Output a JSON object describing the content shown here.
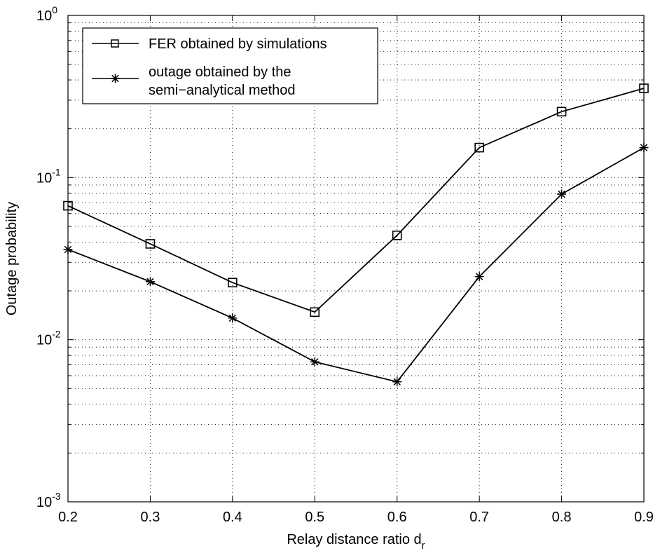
{
  "chart_data": {
    "type": "line",
    "x": [
      0.2,
      0.3,
      0.4,
      0.5,
      0.6,
      0.7,
      0.8,
      0.9
    ],
    "xlim": [
      0.2,
      0.9
    ],
    "ylim": [
      0.001,
      1
    ],
    "yscale": "log",
    "xticks": [
      "0.2",
      "0.3",
      "0.4",
      "0.5",
      "0.6",
      "0.7",
      "0.8",
      "0.9"
    ],
    "yticks": [
      {
        "base": "10",
        "exp": "0",
        "value": 1
      },
      {
        "base": "10",
        "exp": "-1",
        "value": 0.1
      },
      {
        "base": "10",
        "exp": "-2",
        "value": 0.01
      },
      {
        "base": "10",
        "exp": "-3",
        "value": 0.001
      }
    ],
    "xlabel": "Relay distance ratio d",
    "xlabel_sub": "r",
    "ylabel": "Outage probability",
    "grid": true,
    "legend_position": "top-left",
    "series": [
      {
        "name": "FER obtained by simulations",
        "marker": "square",
        "color": "#000000",
        "values": [
          0.067,
          0.039,
          0.0225,
          0.0148,
          0.044,
          0.153,
          0.255,
          0.355
        ]
      },
      {
        "name_lines": [
          "outage obtained by the",
          "semi−analytical method"
        ],
        "marker": "asterisk",
        "color": "#000000",
        "values": [
          0.036,
          0.0228,
          0.0136,
          0.0073,
          0.0055,
          0.0245,
          0.079,
          0.153
        ]
      }
    ]
  }
}
